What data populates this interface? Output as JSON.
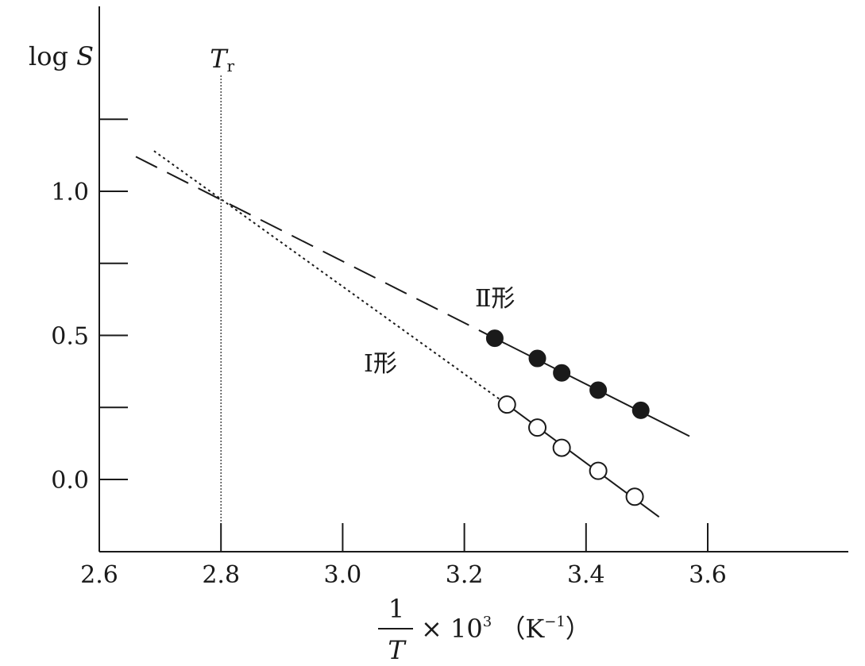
{
  "chart_data": {
    "type": "scatter",
    "ylabel_prefix": "log",
    "ylabel_var": "S",
    "xlabel": {
      "fraction_numerator": "1",
      "fraction_denominator": "T",
      "times": "×",
      "base": "10",
      "exponent": "3",
      "unit_open": "（K",
      "unit_exponent": "−1",
      "unit_close": "）"
    },
    "xlim": [
      2.6,
      3.6
    ],
    "ylim": [
      0.0,
      1.0
    ],
    "x_ticks": [
      2.6,
      2.8,
      3.0,
      3.2,
      3.4,
      3.6
    ],
    "x_tick_labels": [
      "2.6",
      "2.8",
      "3.0",
      "3.2",
      "3.4",
      "3.6"
    ],
    "y_ticks": [
      0.0,
      0.25,
      0.5,
      0.75,
      1.0,
      1.25
    ],
    "y_tick_labels": [
      "0.0",
      "",
      "0.5",
      "",
      "1.0",
      ""
    ],
    "reference_line": {
      "x": 2.8,
      "label_main": "T",
      "label_sub": "r"
    },
    "series": [
      {
        "name": "Ⅱ形",
        "marker": "filled-circle",
        "points": [
          [
            3.25,
            0.49
          ],
          [
            3.32,
            0.42
          ],
          [
            3.36,
            0.37
          ],
          [
            3.42,
            0.31
          ],
          [
            3.49,
            0.24
          ]
        ],
        "fit": [
          [
            3.25,
            0.49
          ],
          [
            3.57,
            0.15
          ]
        ],
        "extrapolation": [
          [
            2.66,
            1.12
          ],
          [
            3.25,
            0.49
          ]
        ],
        "extrapolation_style": "long-dash"
      },
      {
        "name": "Ⅰ形",
        "marker": "open-circle",
        "points": [
          [
            3.27,
            0.26
          ],
          [
            3.32,
            0.18
          ],
          [
            3.36,
            0.11
          ],
          [
            3.42,
            0.03
          ],
          [
            3.48,
            -0.06
          ]
        ],
        "fit": [
          [
            3.27,
            0.26
          ],
          [
            3.52,
            -0.13
          ]
        ],
        "extrapolation": [
          [
            2.69,
            1.14
          ],
          [
            3.27,
            0.26
          ]
        ],
        "extrapolation_style": "dotted"
      }
    ],
    "grid": false
  }
}
